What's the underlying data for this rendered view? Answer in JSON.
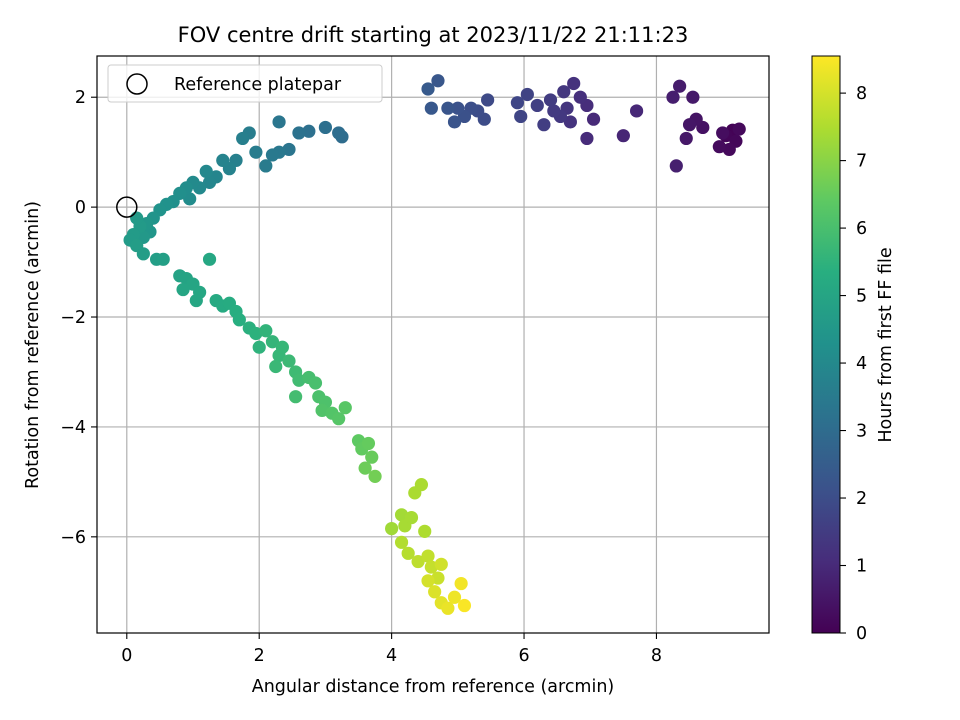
{
  "chart_data": {
    "type": "scatter",
    "title": "FOV centre drift starting at 2023/11/22 21:11:23",
    "xlabel": "Angular distance from reference (arcmin)",
    "ylabel": "Rotation from reference (arcmin)",
    "xlim": [
      -0.45,
      9.7
    ],
    "ylim": [
      -7.75,
      2.75
    ],
    "xticks": [
      0,
      2,
      4,
      6,
      8
    ],
    "yticks": [
      2,
      0,
      -2,
      -4,
      -6
    ],
    "grid": true,
    "legend": {
      "placement": "upper-left",
      "entries": [
        {
          "label": "Reference platepar",
          "marker": "open-circle"
        }
      ]
    },
    "reference_point": {
      "x": 0,
      "y": 0
    },
    "colorbar": {
      "label": "Hours from first FF file",
      "range": [
        0,
        8.55
      ],
      "ticks": [
        0,
        1,
        2,
        3,
        4,
        5,
        6,
        7,
        8
      ],
      "colormap": "viridis"
    },
    "points": [
      {
        "x": 9.15,
        "y": 1.4,
        "c": 0.05
      },
      {
        "x": 9.05,
        "y": 1.3,
        "c": 0.1
      },
      {
        "x": 9.2,
        "y": 1.2,
        "c": 0.15
      },
      {
        "x": 9.25,
        "y": 1.42,
        "c": 0.2
      },
      {
        "x": 9.1,
        "y": 1.05,
        "c": 0.2
      },
      {
        "x": 8.95,
        "y": 1.1,
        "c": 0.25
      },
      {
        "x": 9.0,
        "y": 1.35,
        "c": 0.3
      },
      {
        "x": 8.7,
        "y": 1.45,
        "c": 0.4
      },
      {
        "x": 8.6,
        "y": 1.6,
        "c": 0.45
      },
      {
        "x": 8.5,
        "y": 1.5,
        "c": 0.5
      },
      {
        "x": 8.45,
        "y": 1.25,
        "c": 0.55
      },
      {
        "x": 8.55,
        "y": 2.0,
        "c": 0.6
      },
      {
        "x": 8.35,
        "y": 2.2,
        "c": 0.65
      },
      {
        "x": 8.25,
        "y": 2.0,
        "c": 0.7
      },
      {
        "x": 8.3,
        "y": 0.75,
        "c": 0.75
      },
      {
        "x": 7.5,
        "y": 1.3,
        "c": 0.9
      },
      {
        "x": 7.7,
        "y": 1.75,
        "c": 0.95
      },
      {
        "x": 7.05,
        "y": 1.6,
        "c": 1.0
      },
      {
        "x": 6.95,
        "y": 1.25,
        "c": 1.05
      },
      {
        "x": 6.95,
        "y": 1.85,
        "c": 1.1
      },
      {
        "x": 6.85,
        "y": 2.0,
        "c": 1.15
      },
      {
        "x": 6.75,
        "y": 2.25,
        "c": 1.2
      },
      {
        "x": 6.7,
        "y": 1.55,
        "c": 1.25
      },
      {
        "x": 6.65,
        "y": 1.8,
        "c": 1.3
      },
      {
        "x": 6.6,
        "y": 2.1,
        "c": 1.35
      },
      {
        "x": 6.55,
        "y": 1.65,
        "c": 1.4
      },
      {
        "x": 6.45,
        "y": 1.75,
        "c": 1.45
      },
      {
        "x": 6.4,
        "y": 1.95,
        "c": 1.5
      },
      {
        "x": 6.3,
        "y": 1.5,
        "c": 1.55
      },
      {
        "x": 6.2,
        "y": 1.85,
        "c": 1.6
      },
      {
        "x": 6.05,
        "y": 2.05,
        "c": 1.7
      },
      {
        "x": 5.95,
        "y": 1.65,
        "c": 1.75
      },
      {
        "x": 5.9,
        "y": 1.9,
        "c": 1.8
      },
      {
        "x": 5.45,
        "y": 1.95,
        "c": 1.9
      },
      {
        "x": 5.4,
        "y": 1.6,
        "c": 1.95
      },
      {
        "x": 5.3,
        "y": 1.75,
        "c": 2.0
      },
      {
        "x": 5.2,
        "y": 1.8,
        "c": 2.05
      },
      {
        "x": 5.1,
        "y": 1.65,
        "c": 2.1
      },
      {
        "x": 5.0,
        "y": 1.8,
        "c": 2.15
      },
      {
        "x": 4.95,
        "y": 1.55,
        "c": 2.2
      },
      {
        "x": 4.85,
        "y": 1.8,
        "c": 2.25
      },
      {
        "x": 4.7,
        "y": 2.3,
        "c": 2.3
      },
      {
        "x": 4.6,
        "y": 1.8,
        "c": 2.35
      },
      {
        "x": 4.55,
        "y": 2.15,
        "c": 2.4
      },
      {
        "x": 3.25,
        "y": 1.28,
        "c": 3.0
      },
      {
        "x": 3.2,
        "y": 1.35,
        "c": 3.05
      },
      {
        "x": 3.0,
        "y": 1.45,
        "c": 3.1
      },
      {
        "x": 2.75,
        "y": 1.38,
        "c": 3.15
      },
      {
        "x": 2.6,
        "y": 1.35,
        "c": 3.2
      },
      {
        "x": 2.45,
        "y": 1.05,
        "c": 3.3
      },
      {
        "x": 2.3,
        "y": 1.55,
        "c": 3.35
      },
      {
        "x": 2.3,
        "y": 1.0,
        "c": 3.4
      },
      {
        "x": 2.2,
        "y": 0.95,
        "c": 3.45
      },
      {
        "x": 2.1,
        "y": 0.75,
        "c": 3.5
      },
      {
        "x": 1.95,
        "y": 1.0,
        "c": 3.55
      },
      {
        "x": 1.85,
        "y": 1.35,
        "c": 3.6
      },
      {
        "x": 1.75,
        "y": 1.25,
        "c": 3.65
      },
      {
        "x": 1.65,
        "y": 0.85,
        "c": 3.7
      },
      {
        "x": 1.55,
        "y": 0.7,
        "c": 3.75
      },
      {
        "x": 1.45,
        "y": 0.85,
        "c": 3.8
      },
      {
        "x": 1.35,
        "y": 0.55,
        "c": 3.85
      },
      {
        "x": 1.25,
        "y": 0.45,
        "c": 3.9
      },
      {
        "x": 1.2,
        "y": 0.65,
        "c": 3.95
      },
      {
        "x": 1.1,
        "y": 0.35,
        "c": 4.0
      },
      {
        "x": 1.0,
        "y": 0.45,
        "c": 4.05
      },
      {
        "x": 0.95,
        "y": 0.15,
        "c": 4.1
      },
      {
        "x": 0.9,
        "y": 0.35,
        "c": 4.15
      },
      {
        "x": 0.8,
        "y": 0.25,
        "c": 4.2
      },
      {
        "x": 0.7,
        "y": 0.1,
        "c": 4.25
      },
      {
        "x": 0.6,
        "y": 0.05,
        "c": 4.3
      },
      {
        "x": 0.5,
        "y": -0.05,
        "c": 4.35
      },
      {
        "x": 0.4,
        "y": -0.2,
        "c": 4.4
      },
      {
        "x": 0.35,
        "y": -0.45,
        "c": 4.45
      },
      {
        "x": 0.3,
        "y": -0.3,
        "c": 4.5
      },
      {
        "x": 0.25,
        "y": -0.55,
        "c": 4.55
      },
      {
        "x": 0.2,
        "y": -0.35,
        "c": 4.6
      },
      {
        "x": 0.15,
        "y": -0.2,
        "c": 4.6
      },
      {
        "x": 0.1,
        "y": -0.5,
        "c": 4.65
      },
      {
        "x": 0.05,
        "y": -0.6,
        "c": 4.65
      },
      {
        "x": 0.15,
        "y": -0.7,
        "c": 4.7
      },
      {
        "x": 0.25,
        "y": -0.85,
        "c": 4.7
      },
      {
        "x": 0.45,
        "y": -0.95,
        "c": 4.75
      },
      {
        "x": 0.55,
        "y": -0.95,
        "c": 4.8
      },
      {
        "x": 0.8,
        "y": -1.25,
        "c": 4.9
      },
      {
        "x": 0.9,
        "y": -1.3,
        "c": 4.95
      },
      {
        "x": 1.0,
        "y": -1.4,
        "c": 5.0
      },
      {
        "x": 0.85,
        "y": -1.5,
        "c": 5.0
      },
      {
        "x": 1.1,
        "y": -1.55,
        "c": 5.05
      },
      {
        "x": 1.05,
        "y": -1.7,
        "c": 5.05
      },
      {
        "x": 1.25,
        "y": -0.95,
        "c": 5.1
      },
      {
        "x": 1.35,
        "y": -1.7,
        "c": 5.15
      },
      {
        "x": 1.45,
        "y": -1.8,
        "c": 5.2
      },
      {
        "x": 1.55,
        "y": -1.75,
        "c": 5.25
      },
      {
        "x": 1.65,
        "y": -1.9,
        "c": 5.3
      },
      {
        "x": 1.7,
        "y": -2.05,
        "c": 5.35
      },
      {
        "x": 1.85,
        "y": -2.2,
        "c": 5.4
      },
      {
        "x": 1.95,
        "y": -2.3,
        "c": 5.45
      },
      {
        "x": 2.0,
        "y": -2.55,
        "c": 5.5
      },
      {
        "x": 2.1,
        "y": -2.25,
        "c": 5.55
      },
      {
        "x": 2.2,
        "y": -2.45,
        "c": 5.6
      },
      {
        "x": 2.3,
        "y": -2.7,
        "c": 5.65
      },
      {
        "x": 2.35,
        "y": -2.55,
        "c": 5.65
      },
      {
        "x": 2.25,
        "y": -2.9,
        "c": 5.7
      },
      {
        "x": 2.45,
        "y": -2.8,
        "c": 5.75
      },
      {
        "x": 2.55,
        "y": -3.0,
        "c": 5.8
      },
      {
        "x": 2.6,
        "y": -3.15,
        "c": 5.85
      },
      {
        "x": 2.55,
        "y": -3.45,
        "c": 5.9
      },
      {
        "x": 2.75,
        "y": -3.1,
        "c": 5.95
      },
      {
        "x": 2.85,
        "y": -3.2,
        "c": 6.0
      },
      {
        "x": 2.9,
        "y": -3.45,
        "c": 6.05
      },
      {
        "x": 3.0,
        "y": -3.55,
        "c": 6.1
      },
      {
        "x": 2.95,
        "y": -3.7,
        "c": 6.15
      },
      {
        "x": 3.1,
        "y": -3.75,
        "c": 6.2
      },
      {
        "x": 3.2,
        "y": -3.85,
        "c": 6.25
      },
      {
        "x": 3.3,
        "y": -3.65,
        "c": 6.3
      },
      {
        "x": 3.5,
        "y": -4.25,
        "c": 6.4
      },
      {
        "x": 3.55,
        "y": -4.4,
        "c": 6.45
      },
      {
        "x": 3.65,
        "y": -4.3,
        "c": 6.5
      },
      {
        "x": 3.7,
        "y": -4.55,
        "c": 6.55
      },
      {
        "x": 3.6,
        "y": -4.75,
        "c": 6.6
      },
      {
        "x": 3.75,
        "y": -4.9,
        "c": 6.7
      },
      {
        "x": 4.0,
        "y": -5.85,
        "c": 7.3
      },
      {
        "x": 4.15,
        "y": -5.6,
        "c": 7.35
      },
      {
        "x": 4.2,
        "y": -5.8,
        "c": 7.4
      },
      {
        "x": 4.3,
        "y": -5.65,
        "c": 7.4
      },
      {
        "x": 4.35,
        "y": -5.2,
        "c": 7.45
      },
      {
        "x": 4.45,
        "y": -5.05,
        "c": 7.45
      },
      {
        "x": 4.5,
        "y": -5.9,
        "c": 7.5
      },
      {
        "x": 4.15,
        "y": -6.1,
        "c": 7.55
      },
      {
        "x": 4.25,
        "y": -6.3,
        "c": 7.6
      },
      {
        "x": 4.4,
        "y": -6.45,
        "c": 7.7
      },
      {
        "x": 4.55,
        "y": -6.35,
        "c": 7.75
      },
      {
        "x": 4.6,
        "y": -6.55,
        "c": 7.8
      },
      {
        "x": 4.7,
        "y": -6.75,
        "c": 7.85
      },
      {
        "x": 4.75,
        "y": -6.5,
        "c": 7.95
      },
      {
        "x": 4.55,
        "y": -6.8,
        "c": 8.0
      },
      {
        "x": 4.65,
        "y": -7.0,
        "c": 8.1
      },
      {
        "x": 4.75,
        "y": -7.2,
        "c": 8.2
      },
      {
        "x": 4.85,
        "y": -7.3,
        "c": 8.3
      },
      {
        "x": 4.95,
        "y": -7.1,
        "c": 8.35
      },
      {
        "x": 5.05,
        "y": -6.85,
        "c": 8.4
      },
      {
        "x": 5.1,
        "y": -7.25,
        "c": 8.5
      }
    ]
  }
}
